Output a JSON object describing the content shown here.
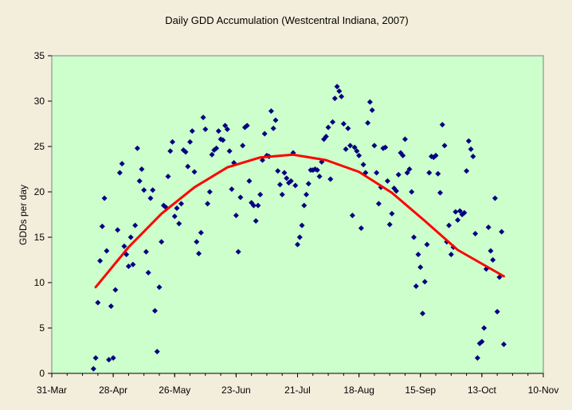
{
  "chart_data": {
    "type": "scatter",
    "title": "Daily GDD Accumulation (Westcentral Indiana, 2007)",
    "xlabel": "",
    "ylabel": "GDDs per day",
    "x_axis": {
      "type": "date",
      "range": [
        "2007-03-31",
        "2007-11-10"
      ],
      "ticks": [
        "2007-03-31",
        "2007-04-28",
        "2007-05-26",
        "2007-06-23",
        "2007-07-21",
        "2007-08-18",
        "2007-09-15",
        "2007-10-13",
        "2007-11-10"
      ],
      "tick_labels": [
        "31-Mar",
        "28-Apr",
        "26-May",
        "23-Jun",
        "21-Jul",
        "18-Aug",
        "15-Sep",
        "13-Oct",
        "10-Nov"
      ]
    },
    "y_axis": {
      "range": [
        0,
        35
      ],
      "ticks": [
        0,
        5,
        10,
        15,
        20,
        25,
        30,
        35
      ],
      "tick_labels": [
        "0",
        "5",
        "10",
        "15",
        "20",
        "25",
        "30",
        "35"
      ]
    },
    "grid": false,
    "legend": "none",
    "colors": {
      "plot_background": "#ccffcc",
      "figure_background": "#f3eedc",
      "points": "#000080",
      "trend": "#ff0000"
    },
    "series": [
      {
        "type": "scatter",
        "marker": "diamond",
        "points": [
          [
            "2007-04-19",
            0.5
          ],
          [
            "2007-04-20",
            1.7
          ],
          [
            "2007-04-21",
            7.8
          ],
          [
            "2007-04-22",
            12.4
          ],
          [
            "2007-04-23",
            16.2
          ],
          [
            "2007-04-24",
            19.3
          ],
          [
            "2007-04-25",
            13.5
          ],
          [
            "2007-04-26",
            1.5
          ],
          [
            "2007-04-27",
            7.4
          ],
          [
            "2007-04-28",
            1.7
          ],
          [
            "2007-04-29",
            9.2
          ],
          [
            "2007-04-30",
            15.8
          ],
          [
            "2007-05-01",
            22.1
          ],
          [
            "2007-05-02",
            23.1
          ],
          [
            "2007-05-03",
            14.0
          ],
          [
            "2007-05-04",
            13.1
          ],
          [
            "2007-05-05",
            11.8
          ],
          [
            "2007-05-06",
            15.0
          ],
          [
            "2007-05-07",
            12.0
          ],
          [
            "2007-05-08",
            16.3
          ],
          [
            "2007-05-09",
            24.8
          ],
          [
            "2007-05-10",
            21.2
          ],
          [
            "2007-05-11",
            22.5
          ],
          [
            "2007-05-12",
            20.2
          ],
          [
            "2007-05-13",
            13.4
          ],
          [
            "2007-05-14",
            11.1
          ],
          [
            "2007-05-15",
            19.3
          ],
          [
            "2007-05-16",
            20.2
          ],
          [
            "2007-05-17",
            6.9
          ],
          [
            "2007-05-18",
            2.4
          ],
          [
            "2007-05-19",
            9.5
          ],
          [
            "2007-05-20",
            14.5
          ],
          [
            "2007-05-21",
            18.5
          ],
          [
            "2007-05-22",
            18.3
          ],
          [
            "2007-05-23",
            21.7
          ],
          [
            "2007-05-24",
            24.5
          ],
          [
            "2007-05-25",
            25.5
          ],
          [
            "2007-05-26",
            17.3
          ],
          [
            "2007-05-27",
            18.2
          ],
          [
            "2007-05-28",
            16.5
          ],
          [
            "2007-05-29",
            18.7
          ],
          [
            "2007-05-30",
            24.6
          ],
          [
            "2007-05-31",
            24.4
          ],
          [
            "2007-06-01",
            22.8
          ],
          [
            "2007-06-02",
            25.5
          ],
          [
            "2007-06-03",
            26.7
          ],
          [
            "2007-06-04",
            22.2
          ],
          [
            "2007-06-05",
            14.5
          ],
          [
            "2007-06-06",
            13.2
          ],
          [
            "2007-06-07",
            15.5
          ],
          [
            "2007-06-08",
            28.2
          ],
          [
            "2007-06-09",
            26.9
          ],
          [
            "2007-06-10",
            18.7
          ],
          [
            "2007-06-11",
            20.0
          ],
          [
            "2007-06-12",
            24.1
          ],
          [
            "2007-06-13",
            24.6
          ],
          [
            "2007-06-14",
            24.8
          ],
          [
            "2007-06-15",
            26.7
          ],
          [
            "2007-06-16",
            25.8
          ],
          [
            "2007-06-17",
            25.7
          ],
          [
            "2007-06-18",
            27.3
          ],
          [
            "2007-06-19",
            26.9
          ],
          [
            "2007-06-20",
            24.5
          ],
          [
            "2007-06-21",
            20.3
          ],
          [
            "2007-06-22",
            23.2
          ],
          [
            "2007-06-23",
            17.4
          ],
          [
            "2007-06-24",
            13.4
          ],
          [
            "2007-06-25",
            19.4
          ],
          [
            "2007-06-26",
            25.1
          ],
          [
            "2007-06-27",
            27.1
          ],
          [
            "2007-06-28",
            27.3
          ],
          [
            "2007-06-29",
            21.2
          ],
          [
            "2007-06-30",
            18.8
          ],
          [
            "2007-07-01",
            18.5
          ],
          [
            "2007-07-02",
            16.8
          ],
          [
            "2007-07-03",
            18.5
          ],
          [
            "2007-07-04",
            19.7
          ],
          [
            "2007-07-05",
            23.5
          ],
          [
            "2007-07-06",
            26.4
          ],
          [
            "2007-07-07",
            24.0
          ],
          [
            "2007-07-08",
            23.9
          ],
          [
            "2007-07-09",
            28.9
          ],
          [
            "2007-07-10",
            27.0
          ],
          [
            "2007-07-11",
            27.9
          ],
          [
            "2007-07-12",
            22.3
          ],
          [
            "2007-07-13",
            20.8
          ],
          [
            "2007-07-14",
            19.7
          ],
          [
            "2007-07-15",
            22.1
          ],
          [
            "2007-07-16",
            21.5
          ],
          [
            "2007-07-17",
            21.0
          ],
          [
            "2007-07-18",
            21.2
          ],
          [
            "2007-07-19",
            24.3
          ],
          [
            "2007-07-20",
            20.7
          ],
          [
            "2007-07-21",
            14.2
          ],
          [
            "2007-07-22",
            15.0
          ],
          [
            "2007-07-23",
            16.3
          ],
          [
            "2007-07-24",
            18.5
          ],
          [
            "2007-07-25",
            19.7
          ],
          [
            "2007-07-26",
            20.9
          ],
          [
            "2007-07-27",
            22.4
          ],
          [
            "2007-07-28",
            22.4
          ],
          [
            "2007-07-29",
            22.5
          ],
          [
            "2007-07-30",
            22.4
          ],
          [
            "2007-07-31",
            21.7
          ],
          [
            "2007-08-01",
            23.3
          ],
          [
            "2007-08-02",
            25.8
          ],
          [
            "2007-08-03",
            26.1
          ],
          [
            "2007-08-04",
            27.1
          ],
          [
            "2007-08-05",
            21.4
          ],
          [
            "2007-08-06",
            27.7
          ],
          [
            "2007-08-07",
            30.3
          ],
          [
            "2007-08-08",
            31.6
          ],
          [
            "2007-08-09",
            31.1
          ],
          [
            "2007-08-10",
            30.5
          ],
          [
            "2007-08-11",
            27.5
          ],
          [
            "2007-08-12",
            24.7
          ],
          [
            "2007-08-13",
            27.0
          ],
          [
            "2007-08-14",
            25.1
          ],
          [
            "2007-08-15",
            17.4
          ],
          [
            "2007-08-16",
            24.9
          ],
          [
            "2007-08-17",
            24.5
          ],
          [
            "2007-08-18",
            24.0
          ],
          [
            "2007-08-19",
            16.0
          ],
          [
            "2007-08-20",
            23.0
          ],
          [
            "2007-08-21",
            22.1
          ],
          [
            "2007-08-22",
            27.6
          ],
          [
            "2007-08-23",
            29.9
          ],
          [
            "2007-08-24",
            29.0
          ],
          [
            "2007-08-25",
            25.1
          ],
          [
            "2007-08-26",
            22.1
          ],
          [
            "2007-08-27",
            18.7
          ],
          [
            "2007-08-28",
            20.5
          ],
          [
            "2007-08-29",
            24.8
          ],
          [
            "2007-08-30",
            24.9
          ],
          [
            "2007-08-31",
            21.2
          ],
          [
            "2007-09-01",
            16.4
          ],
          [
            "2007-09-02",
            17.6
          ],
          [
            "2007-09-03",
            20.4
          ],
          [
            "2007-09-04",
            20.1
          ],
          [
            "2007-09-05",
            21.9
          ],
          [
            "2007-09-06",
            24.3
          ],
          [
            "2007-09-07",
            24.0
          ],
          [
            "2007-09-08",
            25.8
          ],
          [
            "2007-09-09",
            22.1
          ],
          [
            "2007-09-10",
            22.5
          ],
          [
            "2007-09-11",
            20.0
          ],
          [
            "2007-09-12",
            15.0
          ],
          [
            "2007-09-13",
            9.6
          ],
          [
            "2007-09-14",
            13.1
          ],
          [
            "2007-09-15",
            11.7
          ],
          [
            "2007-09-16",
            6.6
          ],
          [
            "2007-09-17",
            10.1
          ],
          [
            "2007-09-18",
            14.2
          ],
          [
            "2007-09-19",
            22.1
          ],
          [
            "2007-09-20",
            23.9
          ],
          [
            "2007-09-21",
            23.8
          ],
          [
            "2007-09-22",
            24.0
          ],
          [
            "2007-09-23",
            22.0
          ],
          [
            "2007-09-24",
            19.9
          ],
          [
            "2007-09-25",
            27.4
          ],
          [
            "2007-09-26",
            25.1
          ],
          [
            "2007-09-27",
            14.5
          ],
          [
            "2007-09-28",
            16.3
          ],
          [
            "2007-09-29",
            13.1
          ],
          [
            "2007-09-30",
            13.9
          ],
          [
            "2007-10-01",
            17.8
          ],
          [
            "2007-10-02",
            16.9
          ],
          [
            "2007-10-03",
            17.9
          ],
          [
            "2007-10-04",
            17.5
          ],
          [
            "2007-10-05",
            17.7
          ],
          [
            "2007-10-06",
            22.3
          ],
          [
            "2007-10-07",
            25.6
          ],
          [
            "2007-10-08",
            24.7
          ],
          [
            "2007-10-09",
            23.9
          ],
          [
            "2007-10-10",
            15.4
          ],
          [
            "2007-10-11",
            1.7
          ],
          [
            "2007-10-12",
            3.3
          ],
          [
            "2007-10-13",
            3.5
          ],
          [
            "2007-10-14",
            5.0
          ],
          [
            "2007-10-15",
            11.5
          ],
          [
            "2007-10-16",
            16.1
          ],
          [
            "2007-10-17",
            13.5
          ],
          [
            "2007-10-18",
            12.5
          ],
          [
            "2007-10-19",
            19.3
          ],
          [
            "2007-10-20",
            6.8
          ],
          [
            "2007-10-21",
            10.6
          ],
          [
            "2007-10-22",
            15.6
          ],
          [
            "2007-10-23",
            3.2
          ]
        ]
      },
      {
        "type": "line",
        "style": "polynomial trend",
        "points": [
          [
            "2007-04-20",
            9.5
          ],
          [
            "2007-05-05",
            13.9
          ],
          [
            "2007-05-20",
            17.6
          ],
          [
            "2007-06-04",
            20.5
          ],
          [
            "2007-06-19",
            22.7
          ],
          [
            "2007-07-04",
            23.8
          ],
          [
            "2007-07-19",
            24.1
          ],
          [
            "2007-08-03",
            23.5
          ],
          [
            "2007-08-18",
            22.2
          ],
          [
            "2007-09-02",
            19.9
          ],
          [
            "2007-09-17",
            16.8
          ],
          [
            "2007-10-02",
            13.6
          ],
          [
            "2007-10-23",
            10.7
          ]
        ]
      }
    ]
  }
}
